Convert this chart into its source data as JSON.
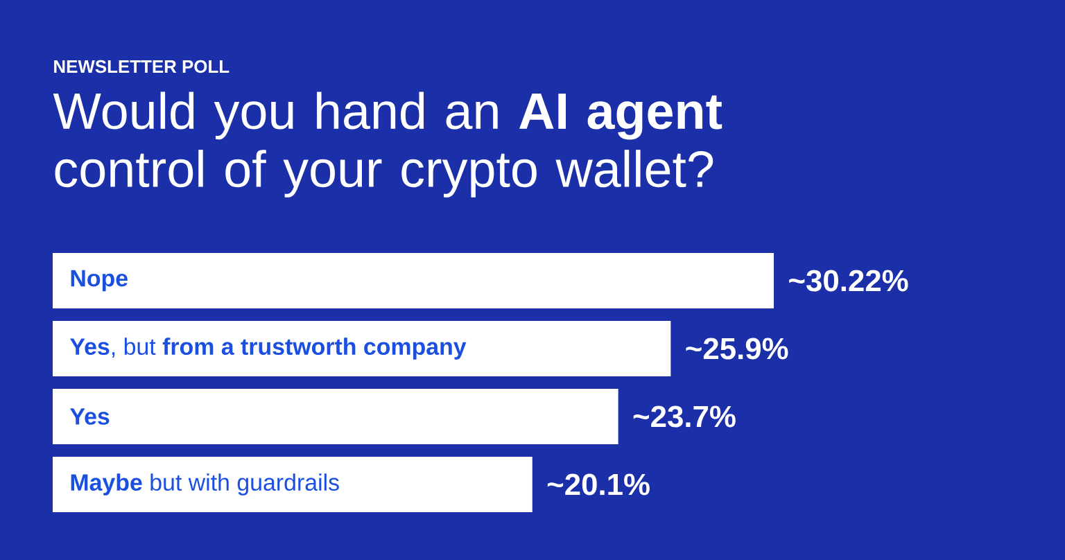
{
  "chart_data": {
    "type": "bar",
    "orientation": "horizontal",
    "subtitle": "NEWSLETTER POLL",
    "title": "Would you hand an **AI agent** control of your crypto wallet?",
    "categories": [
      "**Nope**",
      "**Yes**, but **from a trustworth company**",
      "**Yes**",
      "**Maybe** but with guardrails"
    ],
    "values": [
      30.22,
      25.9,
      23.7,
      20.1
    ],
    "value_labels": [
      "~30.22%",
      "~25.9%",
      "~23.7%",
      "~20.1%"
    ],
    "color": "#ffffff"
  }
}
